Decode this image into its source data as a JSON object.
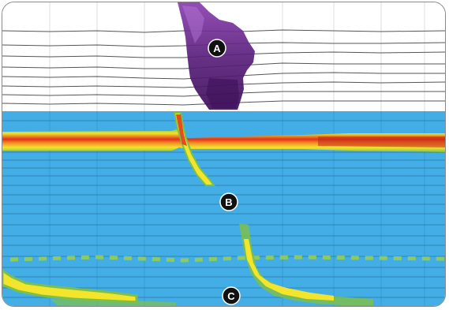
{
  "markers": [
    {
      "label": "A"
    },
    {
      "label": "B"
    },
    {
      "label": "C"
    }
  ],
  "colors": {
    "pressure_background": "#43aee6",
    "high_pressure_red": "#e2321c",
    "high_pressure_orange": "#f28a22",
    "mid_pressure_yellow": "#f2e52c",
    "mid_pressure_green": "#7cc04a",
    "impedance_purple": "#5a1f7c",
    "trace_line": "#555555",
    "frame_border": "#8a8a8a",
    "marker_fill": "#111111"
  }
}
